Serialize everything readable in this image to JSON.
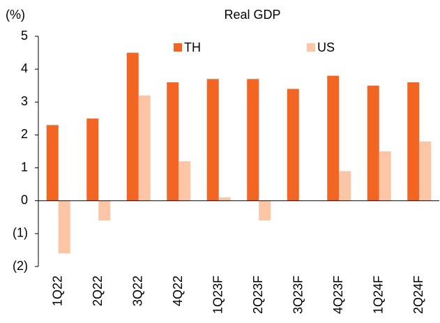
{
  "chart_data": {
    "type": "bar",
    "title": "Real GDP",
    "y_label": "(%)",
    "categories": [
      "1Q22",
      "2Q22",
      "3Q22",
      "4Q22",
      "1Q23F",
      "2Q23F",
      "3Q23F",
      "4Q23F",
      "1Q24F",
      "2Q24F"
    ],
    "series": [
      {
        "name": "TH",
        "color": "#f26522",
        "values": [
          2.3,
          2.5,
          4.5,
          3.6,
          3.7,
          3.7,
          3.4,
          3.8,
          3.5,
          3.6
        ]
      },
      {
        "name": "US",
        "color": "#fcc5a6",
        "values": [
          -1.6,
          -0.6,
          3.2,
          1.2,
          0.1,
          -0.6,
          null,
          0.9,
          1.5,
          1.8
        ]
      }
    ],
    "ylim": [
      -2,
      5
    ],
    "yticks": [
      {
        "value": -2,
        "label": "(2)"
      },
      {
        "value": -1,
        "label": "(1)"
      },
      0,
      1,
      2,
      3,
      4,
      5
    ],
    "grid": false
  }
}
